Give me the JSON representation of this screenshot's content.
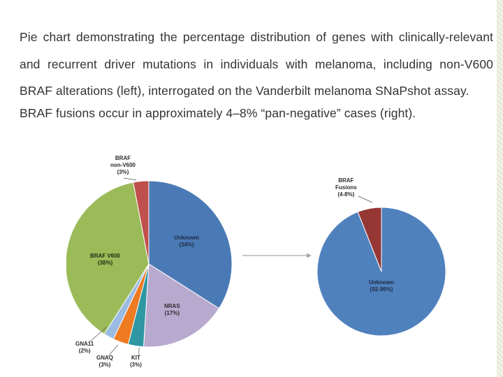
{
  "caption": {
    "paragraph1_pre": "Pie chart demonstrating the percentage distribution of genes with ",
    "paragraph1_emph": "clinically-relevant",
    "paragraph1_post": " and recurrent driver mutations in individuals with melanoma, including non-V600 BRAF alterations (left), interrogated on the Vanderbilt melanoma SNaPshot assay.",
    "paragraph2": "BRAF fusions occur in approximately 4–8% “pan-negative” cases (right)."
  },
  "chart_data": [
    {
      "type": "pie",
      "title": "",
      "start_angle_deg": 0,
      "direction": "clockwise",
      "slices": [
        {
          "name": "Unknown",
          "value": 34,
          "name_text": "Unknown",
          "pct_text": "(34%)",
          "color": "#4a7ab5"
        },
        {
          "name": "NRAS",
          "value": 17,
          "name_text": "NRAS",
          "pct_text": "(17%)",
          "color": "#b8a9cf"
        },
        {
          "name": "KIT",
          "value": 3,
          "name_text": "KIT",
          "pct_text": "(3%)",
          "color": "#2e97a3"
        },
        {
          "name": "GNAQ",
          "value": 3,
          "name_text": "GNAQ",
          "pct_text": "(3%)",
          "color": "#ee7a22"
        },
        {
          "name": "GNA11",
          "value": 2,
          "name_text": "GNA11",
          "pct_text": "(2%)",
          "color": "#9bbbe3"
        },
        {
          "name": "BRAF V600",
          "value": 38,
          "name_text": "BRAF V600",
          "pct_text": "(38%)",
          "color": "#9bbb59"
        },
        {
          "name": "BRAF non-V600",
          "value": 3,
          "name_text": "BRAF\nnon-V600",
          "pct_text": "(3%)",
          "color": "#c0504d"
        }
      ]
    },
    {
      "type": "pie",
      "title": "",
      "start_angle_deg": 0,
      "direction": "clockwise",
      "slices": [
        {
          "name": "Unknown",
          "value": 94,
          "name_text": "Unknown",
          "pct_text": "(92-96%)",
          "color": "#4f81bd"
        },
        {
          "name": "BRAF Fusions",
          "value": 6,
          "name_text": "BRAF\nFusions",
          "pct_text": "(4-8%)",
          "color": "#953735"
        }
      ]
    }
  ],
  "arrow": {
    "color": "#a6a6a6"
  }
}
